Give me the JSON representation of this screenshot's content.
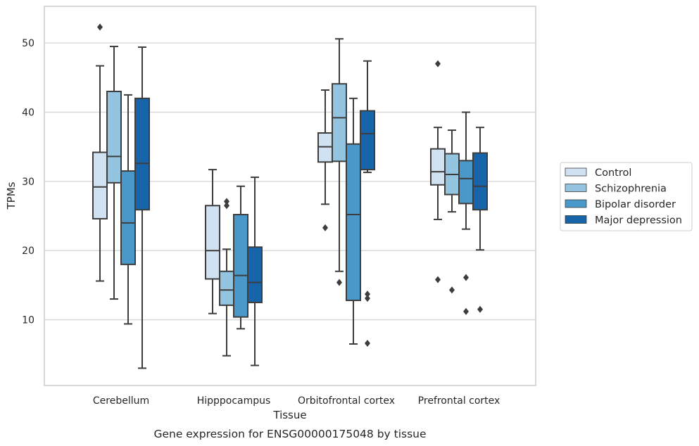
{
  "chart_data": {
    "type": "boxplot",
    "caption": "Gene expression for ENSG00000175048 by tissue",
    "xlabel": "Tissue",
    "ylabel": "TPMs",
    "ylim": [
      0.5,
      55.3
    ],
    "yticks": [
      10,
      20,
      30,
      40,
      50
    ],
    "grid": true,
    "legend_position": "right",
    "categories": [
      "Cerebellum",
      "Hipppocampus",
      "Orbitofrontal cortex",
      "Prefrontal cortex"
    ],
    "series": [
      {
        "name": "Control",
        "color": "#d0e1f2",
        "boxes": [
          {
            "whisker_low": 15.6,
            "q1": 24.6,
            "median": 29.2,
            "q3": 34.2,
            "whisker_high": 46.7,
            "outliers": [
              52.3
            ]
          },
          {
            "whisker_low": 10.9,
            "q1": 15.9,
            "median": 20.0,
            "q3": 26.5,
            "whisker_high": 31.7,
            "outliers": []
          },
          {
            "whisker_low": 26.7,
            "q1": 32.8,
            "median": 35.0,
            "q3": 37.0,
            "whisker_high": 43.2,
            "outliers": [
              23.3
            ]
          },
          {
            "whisker_low": 24.5,
            "q1": 29.5,
            "median": 31.4,
            "q3": 34.7,
            "whisker_high": 37.8,
            "outliers": [
              47.0,
              15.8
            ]
          }
        ]
      },
      {
        "name": "Schizophrenia",
        "color": "#94c4df",
        "boxes": [
          {
            "whisker_low": 13.0,
            "q1": 29.8,
            "median": 33.6,
            "q3": 43.0,
            "whisker_high": 49.5,
            "outliers": []
          },
          {
            "whisker_low": 4.8,
            "q1": 12.1,
            "median": 14.3,
            "q3": 17.0,
            "whisker_high": 20.2,
            "outliers": [
              27.1,
              26.5
            ]
          },
          {
            "whisker_low": 17.0,
            "q1": 32.9,
            "median": 39.2,
            "q3": 44.1,
            "whisker_high": 50.6,
            "outliers": [
              15.4
            ]
          },
          {
            "whisker_low": 25.6,
            "q1": 28.1,
            "median": 31.0,
            "q3": 34.0,
            "whisker_high": 37.4,
            "outliers": [
              14.3
            ]
          }
        ]
      },
      {
        "name": "Bipolar disorder",
        "color": "#4a98c9",
        "boxes": [
          {
            "whisker_low": 9.4,
            "q1": 18.0,
            "median": 24.0,
            "q3": 31.5,
            "whisker_high": 42.5,
            "outliers": []
          },
          {
            "whisker_low": 8.7,
            "q1": 10.4,
            "median": 16.4,
            "q3": 25.2,
            "whisker_high": 29.3,
            "outliers": []
          },
          {
            "whisker_low": 6.5,
            "q1": 12.8,
            "median": 25.2,
            "q3": 35.4,
            "whisker_high": 42.0,
            "outliers": []
          },
          {
            "whisker_low": 23.1,
            "q1": 26.8,
            "median": 30.4,
            "q3": 33.0,
            "whisker_high": 40.0,
            "outliers": [
              16.1,
              11.2
            ]
          }
        ]
      },
      {
        "name": "Major depression",
        "color": "#1764ab",
        "boxes": [
          {
            "whisker_low": 3.0,
            "q1": 25.9,
            "median": 32.6,
            "q3": 42.0,
            "whisker_high": 49.4,
            "outliers": []
          },
          {
            "whisker_low": 3.4,
            "q1": 12.5,
            "median": 15.4,
            "q3": 20.5,
            "whisker_high": 30.6,
            "outliers": []
          },
          {
            "whisker_low": 31.3,
            "q1": 31.7,
            "median": 36.9,
            "q3": 40.2,
            "whisker_high": 47.4,
            "outliers": [
              13.7,
              13.1,
              6.6
            ]
          },
          {
            "whisker_low": 20.1,
            "q1": 25.9,
            "median": 29.3,
            "q3": 34.1,
            "whisker_high": 37.8,
            "outliers": [
              11.5
            ]
          }
        ]
      }
    ]
  }
}
